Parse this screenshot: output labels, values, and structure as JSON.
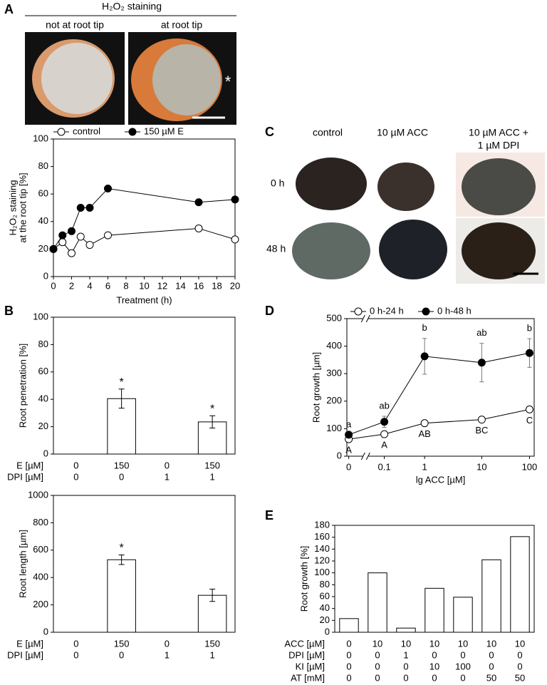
{
  "figure": {
    "panel_labels": [
      "A",
      "B",
      "C",
      "D",
      "E"
    ],
    "staining": {
      "title": "H₂O₂ staining",
      "columns": [
        "not at root tip",
        "at root tip"
      ],
      "marker": "*"
    },
    "treatments": {
      "columns": [
        [
          "control"
        ],
        [
          "10 µM ACC"
        ],
        [
          "10 µM ACC +",
          "1 µM DPI"
        ]
      ],
      "rows": [
        "0 h",
        "48 h"
      ]
    }
  },
  "chart_data": [
    {
      "type": "line",
      "x_label": "Treatment (h)",
      "y_label": [
        "H₂O₂ staining",
        "at the root tip [%]"
      ],
      "x": [
        0,
        1,
        2,
        3,
        4,
        6,
        16,
        20
      ],
      "series": [
        {
          "name": "control",
          "color": "#000000",
          "marker": "open",
          "values": [
            20,
            25,
            17,
            29,
            23,
            30,
            35,
            27
          ]
        },
        {
          "name": "150 µM E",
          "color": "#000000",
          "marker": "filled",
          "values": [
            20,
            30,
            33,
            50,
            50,
            64,
            54,
            56
          ]
        }
      ],
      "xlim": [
        0,
        20
      ],
      "xticks": [
        0,
        2,
        4,
        6,
        8,
        10,
        12,
        14,
        16,
        18,
        20
      ],
      "ylim": [
        0,
        100
      ],
      "yticks": [
        0,
        20,
        40,
        60,
        80,
        100
      ]
    },
    {
      "type": "bar",
      "y_label": "Root penetration [%]",
      "color": "#ffffff",
      "values": [
        0,
        40.5,
        0,
        23.5
      ],
      "errors": [
        null,
        7,
        null,
        4.5
      ],
      "annotations": [
        null,
        "*",
        null,
        "*"
      ],
      "conditions": [
        {
          "label": "E [µM]",
          "values": [
            "0",
            "150",
            "0",
            "150"
          ]
        },
        {
          "label": "DPI [µM]",
          "values": [
            "0",
            "0",
            "1",
            "1"
          ]
        }
      ],
      "ylim": [
        0,
        100
      ],
      "yticks": [
        0,
        20,
        40,
        60,
        80,
        100
      ]
    },
    {
      "type": "bar",
      "y_label": "Root length [µm]",
      "color": "#ffffff",
      "values": [
        0,
        530,
        0,
        270
      ],
      "errors": [
        null,
        35,
        null,
        45
      ],
      "annotations": [
        null,
        "*",
        null,
        null
      ],
      "conditions": [
        {
          "label": "E [µM]",
          "values": [
            "0",
            "150",
            "0",
            "150"
          ]
        },
        {
          "label": "DPI [µM]",
          "values": [
            "0",
            "0",
            "1",
            "1"
          ]
        }
      ],
      "ylim": [
        0,
        1000
      ],
      "yticks": [
        0,
        200,
        400,
        600,
        800,
        1000
      ]
    },
    {
      "type": "line",
      "x_label": "lg ACC [µM]",
      "y_label": "Root growth [µm]",
      "axis_break": true,
      "categories": [
        "0",
        "0.1",
        "1",
        "10",
        "100"
      ],
      "series": [
        {
          "name": "0 h-24 h",
          "color": "#000000",
          "marker": "open",
          "values": [
            62,
            80,
            120,
            133,
            170
          ],
          "letters": [
            "A",
            "A",
            "AB",
            "BC",
            "C"
          ]
        },
        {
          "name": "0 h-48 h",
          "color": "#000000",
          "marker": "filled",
          "values": [
            78,
            125,
            363,
            340,
            375
          ],
          "errors": [
            null,
            20,
            65,
            70,
            52
          ],
          "letters": [
            "a",
            "ab",
            "b",
            "ab",
            "b"
          ]
        }
      ],
      "ylim": [
        0,
        500
      ],
      "yticks": [
        0,
        100,
        200,
        300,
        400,
        500
      ]
    },
    {
      "type": "bar",
      "y_label": "Root growth [%]",
      "color": "#ffffff",
      "values": [
        23,
        100,
        7,
        74,
        59,
        122,
        161
      ],
      "conditions": [
        {
          "label": "ACC [µM]",
          "values": [
            "0",
            "10",
            "10",
            "10",
            "10",
            "10",
            "10"
          ]
        },
        {
          "label": "DPI [µM]",
          "values": [
            "0",
            "0",
            "1",
            "0",
            "0",
            "0",
            "0"
          ]
        },
        {
          "label": "KI [µM]",
          "values": [
            "0",
            "0",
            "0",
            "10",
            "100",
            "0",
            "0"
          ]
        },
        {
          "label": "AT [mM]",
          "values": [
            "0",
            "0",
            "0",
            "0",
            "0",
            "50",
            "50"
          ]
        }
      ],
      "ylim": [
        0,
        180
      ],
      "yticks": [
        0,
        20,
        40,
        60,
        80,
        100,
        120,
        140,
        160,
        180
      ]
    }
  ]
}
